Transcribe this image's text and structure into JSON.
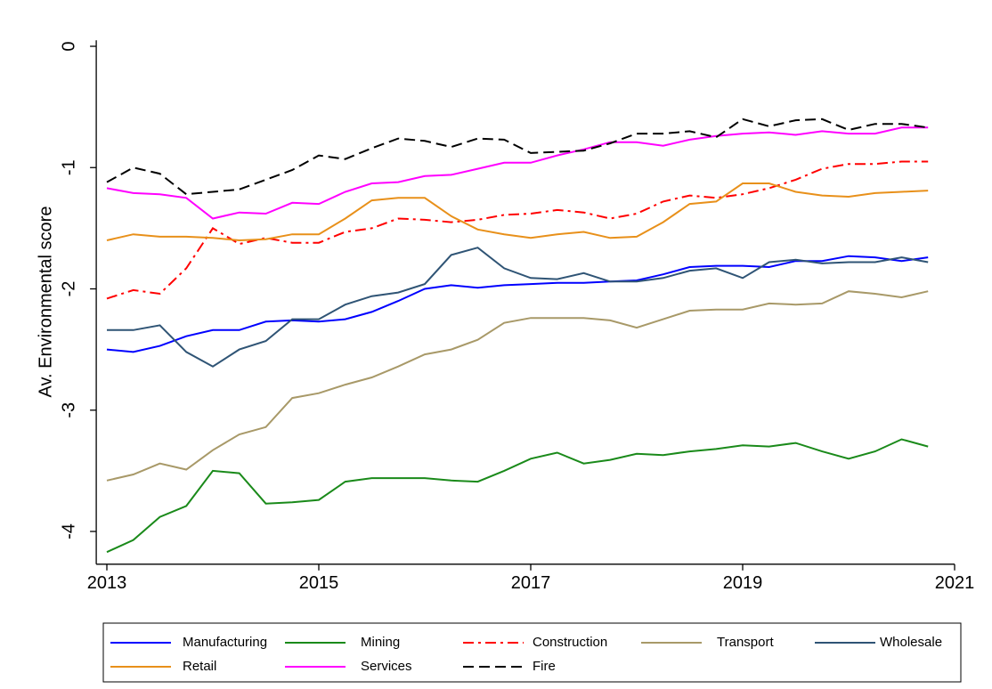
{
  "chart_data": {
    "type": "line",
    "y_label": "Av. Environmental score",
    "x": [
      2013,
      2013.25,
      2013.5,
      2013.75,
      2014,
      2014.25,
      2014.5,
      2014.75,
      2015,
      2015.25,
      2015.5,
      2015.75,
      2016,
      2016.25,
      2016.5,
      2016.75,
      2017,
      2017.25,
      2017.5,
      2017.75,
      2018,
      2018.25,
      2018.5,
      2018.75,
      2019,
      2019.25,
      2019.5,
      2019.75,
      2020,
      2020.25,
      2020.5,
      2020.75
    ],
    "xlim": [
      2012.9,
      2021
    ],
    "xticks": [
      2013,
      2015,
      2017,
      2019,
      2021
    ],
    "ylim": [
      -4.27,
      0.05
    ],
    "yticks": [
      -4,
      -3,
      -2,
      -1,
      0
    ],
    "series": [
      {
        "name": "Manufacturing",
        "color": "#0000ff",
        "dash": "solid",
        "values": [
          -2.5,
          -2.52,
          -2.47,
          -2.39,
          -2.34,
          -2.34,
          -2.27,
          -2.26,
          -2.27,
          -2.25,
          -2.19,
          -2.1,
          -2.0,
          -1.97,
          -1.99,
          -1.97,
          -1.96,
          -1.95,
          -1.95,
          -1.94,
          -1.93,
          -1.88,
          -1.82,
          -1.81,
          -1.81,
          -1.82,
          -1.77,
          -1.77,
          -1.73,
          -1.74,
          -1.77,
          -1.74
        ]
      },
      {
        "name": "Mining",
        "color": "#1a8a1a",
        "dash": "solid",
        "values": [
          -4.17,
          -4.07,
          -3.88,
          -3.79,
          -3.5,
          -3.52,
          -3.77,
          -3.76,
          -3.74,
          -3.59,
          -3.56,
          -3.56,
          -3.56,
          -3.58,
          -3.59,
          -3.5,
          -3.4,
          -3.35,
          -3.44,
          -3.41,
          -3.36,
          -3.37,
          -3.34,
          -3.32,
          -3.29,
          -3.3,
          -3.27,
          -3.34,
          -3.4,
          -3.34,
          -3.24,
          -3.3
        ]
      },
      {
        "name": "Construction",
        "color": "#ff0000",
        "dash": "dashdot",
        "values": [
          -2.08,
          -2.01,
          -2.04,
          -1.83,
          -1.5,
          -1.63,
          -1.58,
          -1.62,
          -1.62,
          -1.53,
          -1.5,
          -1.42,
          -1.43,
          -1.45,
          -1.43,
          -1.39,
          -1.38,
          -1.35,
          -1.37,
          -1.42,
          -1.38,
          -1.28,
          -1.23,
          -1.25,
          -1.22,
          -1.17,
          -1.1,
          -1.01,
          -0.97,
          -0.97,
          -0.95,
          -0.95
        ]
      },
      {
        "name": "Transport",
        "color": "#a89968",
        "dash": "solid",
        "values": [
          -3.58,
          -3.53,
          -3.44,
          -3.49,
          -3.33,
          -3.2,
          -3.14,
          -2.9,
          -2.86,
          -2.79,
          -2.73,
          -2.64,
          -2.54,
          -2.5,
          -2.42,
          -2.28,
          -2.24,
          -2.24,
          -2.24,
          -2.26,
          -2.32,
          -2.25,
          -2.18,
          -2.17,
          -2.17,
          -2.12,
          -2.13,
          -2.12,
          -2.02,
          -2.04,
          -2.07,
          -2.02
        ]
      },
      {
        "name": "Wholesale",
        "color": "#2f5475",
        "dash": "solid",
        "values": [
          -2.34,
          -2.34,
          -2.3,
          -2.52,
          -2.64,
          -2.5,
          -2.43,
          -2.25,
          -2.25,
          -2.13,
          -2.06,
          -2.03,
          -1.96,
          -1.72,
          -1.66,
          -1.83,
          -1.91,
          -1.92,
          -1.87,
          -1.94,
          -1.94,
          -1.91,
          -1.85,
          -1.83,
          -1.91,
          -1.78,
          -1.76,
          -1.79,
          -1.78,
          -1.78,
          -1.74,
          -1.78
        ]
      },
      {
        "name": "Retail",
        "color": "#e8901a",
        "dash": "solid",
        "values": [
          -1.6,
          -1.55,
          -1.57,
          -1.57,
          -1.58,
          -1.6,
          -1.59,
          -1.55,
          -1.55,
          -1.42,
          -1.27,
          -1.25,
          -1.25,
          -1.4,
          -1.51,
          -1.55,
          -1.58,
          -1.55,
          -1.53,
          -1.58,
          -1.57,
          -1.45,
          -1.3,
          -1.28,
          -1.13,
          -1.13,
          -1.2,
          -1.23,
          -1.24,
          -1.21,
          -1.2,
          -1.19
        ]
      },
      {
        "name": "Services",
        "color": "#ff00ff",
        "dash": "solid",
        "values": [
          -1.17,
          -1.21,
          -1.22,
          -1.25,
          -1.42,
          -1.37,
          -1.38,
          -1.29,
          -1.3,
          -1.2,
          -1.13,
          -1.12,
          -1.07,
          -1.06,
          -1.01,
          -0.96,
          -0.96,
          -0.9,
          -0.85,
          -0.79,
          -0.79,
          -0.82,
          -0.77,
          -0.74,
          -0.72,
          -0.71,
          -0.73,
          -0.7,
          -0.72,
          -0.72,
          -0.67,
          -0.67
        ]
      },
      {
        "name": "Fire",
        "color": "#000000",
        "dash": "dash",
        "values": [
          -1.12,
          -1.0,
          -1.05,
          -1.22,
          -1.2,
          -1.18,
          -1.1,
          -1.02,
          -0.9,
          -0.93,
          -0.84,
          -0.76,
          -0.78,
          -0.83,
          -0.76,
          -0.77,
          -0.88,
          -0.87,
          -0.86,
          -0.8,
          -0.72,
          -0.72,
          -0.7,
          -0.75,
          -0.6,
          -0.66,
          -0.61,
          -0.6,
          -0.69,
          -0.64,
          -0.64,
          -0.67
        ]
      }
    ]
  }
}
